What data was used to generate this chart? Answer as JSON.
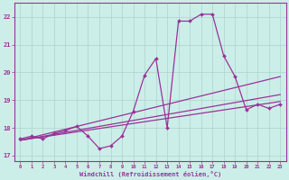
{
  "xlabel": "Windchill (Refroidissement éolien,°C)",
  "background_color": "#cceee8",
  "grid_color": "#aad4cc",
  "line_color": "#993399",
  "xlim": [
    -0.5,
    23.5
  ],
  "ylim": [
    16.8,
    22.5
  ],
  "xticks": [
    0,
    1,
    2,
    3,
    4,
    5,
    6,
    7,
    8,
    9,
    10,
    11,
    12,
    13,
    14,
    15,
    16,
    17,
    18,
    19,
    20,
    21,
    22,
    23
  ],
  "yticks": [
    17,
    18,
    19,
    20,
    21,
    22
  ],
  "series1_x": [
    0,
    1,
    2,
    3,
    4,
    5,
    6,
    7,
    8,
    9,
    10,
    11,
    12,
    13,
    14,
    15,
    16,
    17,
    18,
    19,
    20,
    21,
    22,
    23
  ],
  "series1_y": [
    17.6,
    17.7,
    17.6,
    17.8,
    17.9,
    18.05,
    17.7,
    17.25,
    17.35,
    17.7,
    18.6,
    19.9,
    20.5,
    18.0,
    21.85,
    21.85,
    22.1,
    22.1,
    20.6,
    19.85,
    18.65,
    18.85,
    18.7,
    18.85
  ],
  "trend1_x": [
    0,
    23
  ],
  "trend1_y": [
    17.55,
    19.85
  ],
  "trend2_x": [
    0,
    23
  ],
  "trend2_y": [
    17.55,
    19.2
  ],
  "trend3_x": [
    0,
    23
  ],
  "trend3_y": [
    17.55,
    18.95
  ],
  "marker": "D",
  "markersize": 2.0,
  "linewidth": 0.9
}
